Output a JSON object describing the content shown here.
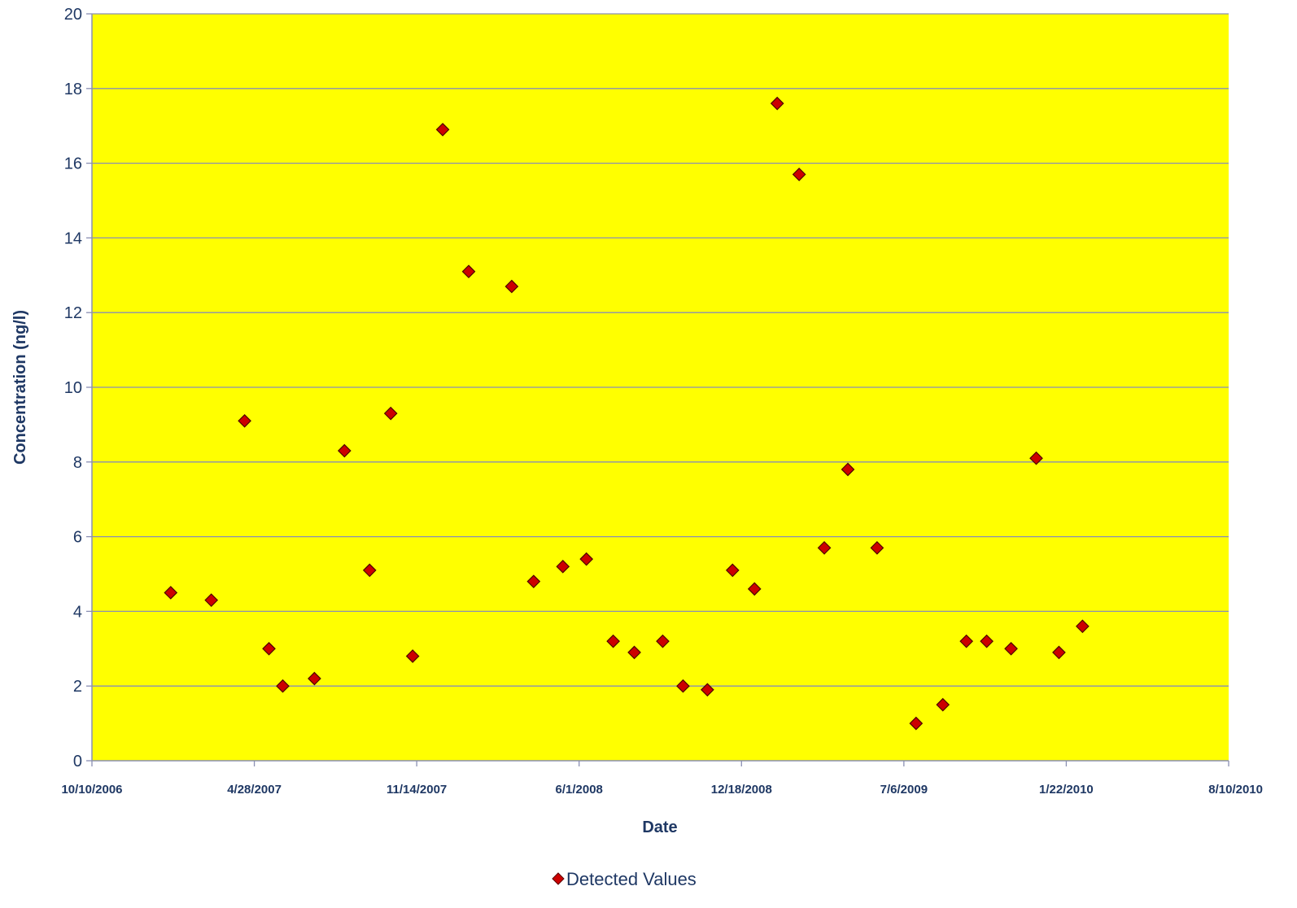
{
  "chart_data": {
    "type": "scatter",
    "xlabel": "Date",
    "ylabel": "Concentration (ng/l)",
    "x_type": "date",
    "xlim": [
      "2006-10-10",
      "2010-08-10"
    ],
    "ylim": [
      0,
      20
    ],
    "x_ticks": [
      "2006-10-10",
      "2007-04-28",
      "2007-11-14",
      "2008-06-01",
      "2008-12-18",
      "2009-07-06",
      "2010-01-22",
      "2010-08-10"
    ],
    "x_tick_labels": [
      "10/10/2006",
      "4/28/2007",
      "11/14/2007",
      "6/1/2008",
      "12/18/2008",
      "7/6/2009",
      "1/22/2010",
      "8/10/2010"
    ],
    "y_ticks": [
      0,
      2,
      4,
      6,
      8,
      10,
      12,
      14,
      16,
      18,
      20
    ],
    "grid": "horizontal",
    "legend_position": "bottom",
    "series": [
      {
        "name": "Detected Values",
        "marker": "diamond",
        "color": "#cc0000",
        "points": [
          {
            "x": "2007-01-15",
            "y": 4.5
          },
          {
            "x": "2007-03-06",
            "y": 4.3
          },
          {
            "x": "2007-04-16",
            "y": 9.1
          },
          {
            "x": "2007-05-16",
            "y": 3.0
          },
          {
            "x": "2007-06-02",
            "y": 2.0
          },
          {
            "x": "2007-07-11",
            "y": 2.2
          },
          {
            "x": "2007-08-17",
            "y": 8.3
          },
          {
            "x": "2007-09-17",
            "y": 5.1
          },
          {
            "x": "2007-10-13",
            "y": 9.3
          },
          {
            "x": "2007-11-09",
            "y": 2.8
          },
          {
            "x": "2007-12-16",
            "y": 16.9
          },
          {
            "x": "2008-01-17",
            "y": 13.1
          },
          {
            "x": "2008-03-10",
            "y": 12.7
          },
          {
            "x": "2008-04-06",
            "y": 4.8
          },
          {
            "x": "2008-05-12",
            "y": 5.2
          },
          {
            "x": "2008-06-10",
            "y": 5.4
          },
          {
            "x": "2008-07-13",
            "y": 3.2
          },
          {
            "x": "2008-08-08",
            "y": 2.9
          },
          {
            "x": "2008-09-12",
            "y": 3.2
          },
          {
            "x": "2008-10-07",
            "y": 2.0
          },
          {
            "x": "2008-11-06",
            "y": 1.9
          },
          {
            "x": "2008-12-07",
            "y": 5.1
          },
          {
            "x": "2009-01-03",
            "y": 4.6
          },
          {
            "x": "2009-01-31",
            "y": 17.6
          },
          {
            "x": "2009-02-27",
            "y": 15.7
          },
          {
            "x": "2009-03-30",
            "y": 5.7
          },
          {
            "x": "2009-04-28",
            "y": 7.8
          },
          {
            "x": "2009-06-03",
            "y": 5.7
          },
          {
            "x": "2009-07-21",
            "y": 1.0
          },
          {
            "x": "2009-08-23",
            "y": 1.5
          },
          {
            "x": "2009-09-21",
            "y": 3.2
          },
          {
            "x": "2009-10-16",
            "y": 3.2
          },
          {
            "x": "2009-11-15",
            "y": 3.0
          },
          {
            "x": "2009-12-16",
            "y": 8.1
          },
          {
            "x": "2010-01-13",
            "y": 2.9
          },
          {
            "x": "2010-02-11",
            "y": 3.6
          }
        ]
      }
    ]
  }
}
